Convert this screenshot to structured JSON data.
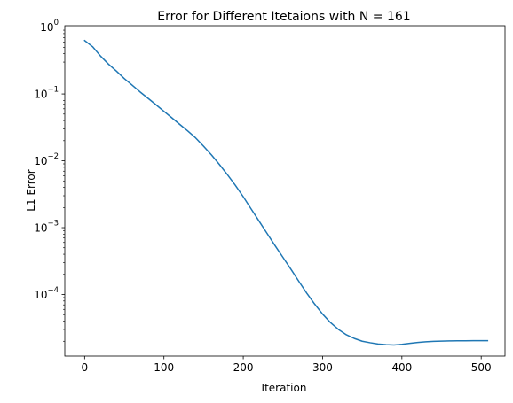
{
  "chart_data": {
    "type": "line",
    "title": "Error for Different Itetaions with N = 161",
    "xlabel": "Iteration",
    "ylabel": "L1 Error",
    "xscale": "linear",
    "yscale": "log",
    "xlim": [
      -25,
      530
    ],
    "ylim": [
      1.2e-05,
      1.05
    ],
    "grid": false,
    "x_ticks": [
      {
        "value": 0,
        "label": "0"
      },
      {
        "value": 100,
        "label": "100"
      },
      {
        "value": 200,
        "label": "200"
      },
      {
        "value": 300,
        "label": "300"
      },
      {
        "value": 400,
        "label": "400"
      },
      {
        "value": 500,
        "label": "500"
      }
    ],
    "y_ticks": [
      {
        "value": 1,
        "base": "10",
        "exp": "0"
      },
      {
        "value": 0.1,
        "base": "10",
        "exp": "−1"
      },
      {
        "value": 0.01,
        "base": "10",
        "exp": "−2"
      },
      {
        "value": 0.001,
        "base": "10",
        "exp": "−3"
      },
      {
        "value": 0.0001,
        "base": "10",
        "exp": "−4"
      }
    ],
    "series": [
      {
        "color": "#1f77b4",
        "x": [
          0,
          10,
          20,
          30,
          40,
          50,
          60,
          70,
          80,
          90,
          100,
          110,
          120,
          130,
          140,
          150,
          160,
          170,
          180,
          190,
          200,
          210,
          220,
          230,
          240,
          250,
          260,
          270,
          280,
          290,
          300,
          310,
          320,
          330,
          340,
          350,
          360,
          370,
          380,
          390,
          400,
          410,
          420,
          430,
          440,
          450,
          460,
          470,
          480,
          490,
          500,
          508
        ],
        "y": [
          0.63,
          0.51,
          0.37,
          0.28,
          0.22,
          0.17,
          0.135,
          0.107,
          0.086,
          0.069,
          0.055,
          0.044,
          0.035,
          0.028,
          0.022,
          0.0165,
          0.0122,
          0.0088,
          0.0062,
          0.0043,
          0.0029,
          0.0019,
          0.00125,
          0.00082,
          0.00054,
          0.00036,
          0.00024,
          0.000158,
          0.000105,
          7.2e-05,
          5.1e-05,
          3.8e-05,
          3e-05,
          2.5e-05,
          2.2e-05,
          2e-05,
          1.9e-05,
          1.82e-05,
          1.78e-05,
          1.76e-05,
          1.8e-05,
          1.86e-05,
          1.92e-05,
          1.96e-05,
          1.99e-05,
          2.01e-05,
          2.02e-05,
          2.03e-05,
          2.035e-05,
          2.04e-05,
          2.04e-05,
          2.04e-05
        ]
      }
    ]
  }
}
